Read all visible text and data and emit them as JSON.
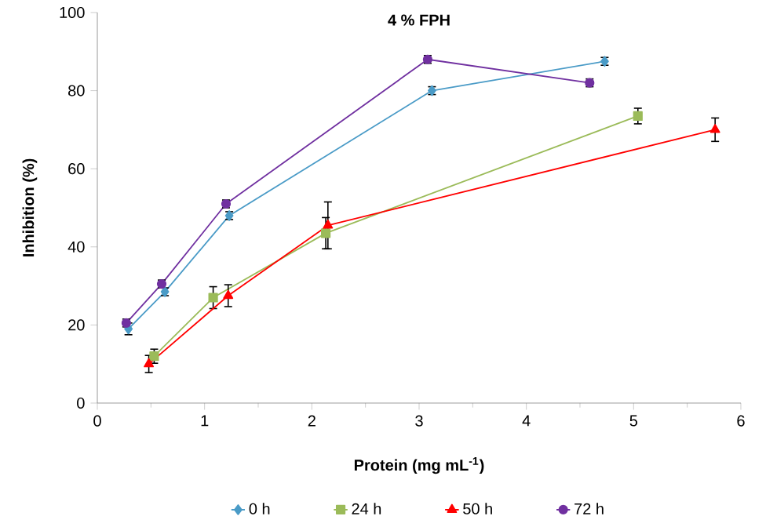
{
  "chart_data": {
    "type": "line",
    "title": "4 % FPH",
    "xlabel": "Protein (mg mL$^{-1}$)",
    "ylabel": "Inhibition (%)",
    "xlim": [
      0,
      6
    ],
    "xticks": [
      0,
      1,
      2,
      3,
      4,
      5,
      6
    ],
    "ylim": [
      0,
      100
    ],
    "yticks": [
      0,
      20,
      40,
      60,
      80,
      100
    ],
    "legend": "bottom",
    "grid": false,
    "line_style": "solid",
    "series": [
      {
        "name": "0 h",
        "color": "#4a9bc7",
        "marker": "diamond",
        "x": [
          0.29,
          0.63,
          1.23,
          3.12,
          4.73
        ],
        "values": [
          19,
          28.5,
          48,
          80,
          87.5
        ],
        "errors": [
          1.5,
          1,
          1,
          1,
          1
        ]
      },
      {
        "name": "24 h",
        "color": "#9bbb59",
        "marker": "square",
        "x": [
          0.53,
          1.08,
          2.13,
          5.04
        ],
        "values": [
          12,
          27,
          43.5,
          73.5
        ],
        "errors": [
          1.8,
          2.8,
          4,
          2
        ]
      },
      {
        "name": "50 h",
        "color": "#ff0000",
        "marker": "triangle",
        "x": [
          0.48,
          1.22,
          2.15,
          5.76
        ],
        "values": [
          10,
          27.5,
          45.5,
          70
        ],
        "errors": [
          2.2,
          2.8,
          6,
          3
        ]
      },
      {
        "name": "72 h",
        "color": "#7030a0",
        "marker": "circle",
        "x": [
          0.27,
          0.6,
          1.2,
          3.08,
          4.59
        ],
        "values": [
          20.5,
          30.5,
          51,
          88,
          82
        ],
        "errors": [
          1,
          1,
          1,
          1,
          1
        ]
      }
    ]
  }
}
